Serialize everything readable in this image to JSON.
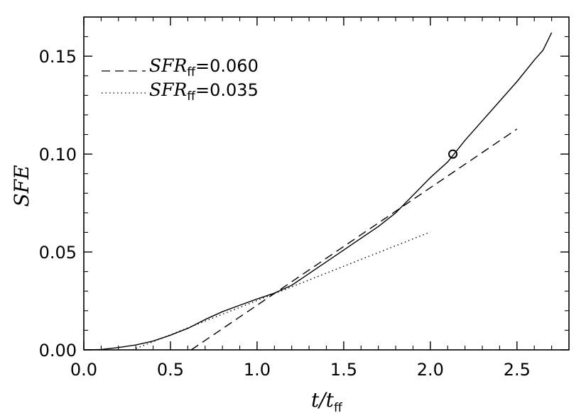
{
  "chart_data": {
    "type": "line",
    "xlabel": {
      "main": "t/t",
      "sub": "ff"
    },
    "ylabel": "SFE",
    "xlim": [
      0.0,
      2.8
    ],
    "ylim": [
      0.0,
      0.17
    ],
    "xticks": [
      0.0,
      0.5,
      1.0,
      1.5,
      2.0,
      2.5
    ],
    "xtick_labels": [
      "0.0",
      "0.5",
      "1.0",
      "1.5",
      "2.0",
      "2.5"
    ],
    "yticks": [
      0.0,
      0.05,
      0.1,
      0.15
    ],
    "ytick_labels": [
      "0.00",
      "0.05",
      "0.10",
      "0.15"
    ],
    "legend_position": "top-left",
    "series": [
      {
        "style": "solid",
        "x": [
          0.0,
          0.1,
          0.2,
          0.3,
          0.4,
          0.5,
          0.6,
          0.7,
          0.8,
          0.9,
          1.0,
          1.1,
          1.2,
          1.3,
          1.4,
          1.5,
          1.6,
          1.7,
          1.8,
          1.9,
          2.0,
          2.1,
          2.2,
          2.3,
          2.4,
          2.5,
          2.6,
          2.65,
          2.7
        ],
        "y": [
          0.0,
          0.0002,
          0.0012,
          0.0025,
          0.0045,
          0.0075,
          0.011,
          0.0155,
          0.0195,
          0.0228,
          0.026,
          0.029,
          0.033,
          0.039,
          0.045,
          0.051,
          0.057,
          0.063,
          0.07,
          0.079,
          0.088,
          0.096,
          0.107,
          0.117,
          0.127,
          0.137,
          0.148,
          0.153,
          0.162
        ]
      },
      {
        "style": "dashed",
        "name": "SFR",
        "name_sub": "ff",
        "value_text": "=0.060",
        "x": [
          0.62,
          2.5
        ],
        "y": [
          0.0,
          0.1128
        ]
      },
      {
        "style": "dotted",
        "name": "SFR",
        "name_sub": "ff",
        "value_text": "=0.035",
        "x": [
          0.28,
          2.0
        ],
        "y": [
          0.0,
          0.0602
        ]
      }
    ],
    "marker": {
      "x": 2.13,
      "y": 0.1,
      "shape": "circle"
    }
  }
}
